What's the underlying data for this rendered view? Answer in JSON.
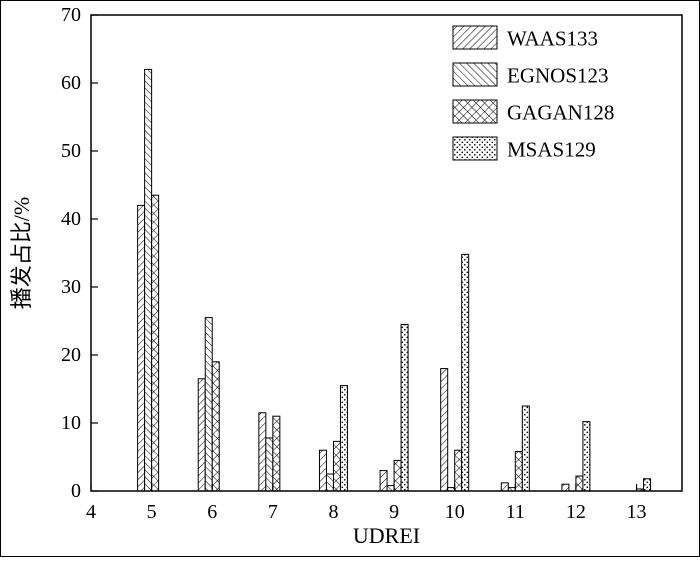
{
  "figure": {
    "background": "#ffffff",
    "axis_color": "#000000",
    "bar_fill": "#ffffff",
    "hatch_color": "#000000"
  },
  "chart_data": {
    "type": "bar",
    "title": "",
    "xlabel": "UDREI",
    "ylabel": "播发占比/%",
    "xlim": [
      4,
      13.75
    ],
    "ylim": [
      0,
      70
    ],
    "x_ticks": [
      4,
      5,
      6,
      7,
      8,
      9,
      10,
      11,
      12,
      13
    ],
    "y_ticks": [
      0,
      10,
      20,
      30,
      40,
      50,
      60,
      70
    ],
    "grid": false,
    "legend_position": "upper right",
    "categories": [
      5,
      6,
      7,
      8,
      9,
      10,
      11,
      12,
      13
    ],
    "series": [
      {
        "name": "WAAS133",
        "pattern": "diagonal-forward",
        "values": [
          42,
          16.5,
          11.5,
          6,
          3,
          18,
          1.2,
          1,
          0
        ]
      },
      {
        "name": "EGNOS123",
        "pattern": "diagonal-back",
        "values": [
          62,
          25.5,
          7.8,
          2.5,
          0.8,
          0.5,
          0.5,
          0,
          0
        ]
      },
      {
        "name": "GAGAN128",
        "pattern": "crosshatch",
        "values": [
          43.5,
          19,
          11,
          7.3,
          4.5,
          6,
          5.8,
          2.2,
          0.3
        ]
      },
      {
        "name": "MSAS129",
        "pattern": "dots",
        "values": [
          0,
          0,
          0,
          15.5,
          24.5,
          34.8,
          12.5,
          10.2,
          1.8
        ]
      }
    ]
  }
}
